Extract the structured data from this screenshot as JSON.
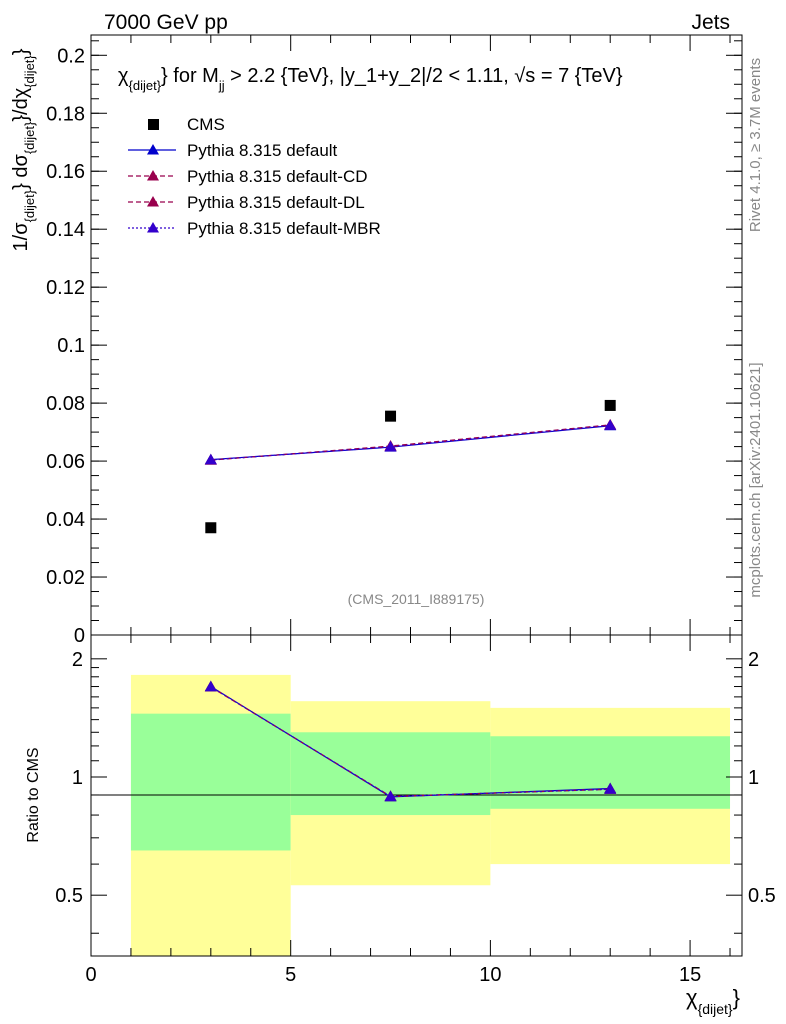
{
  "header": {
    "left": "7000 GeV pp",
    "right": "Jets"
  },
  "side_labels": {
    "rivet": "Rivet 4.1.0, ≥ 3.7M events",
    "mcplots": "mcplots.cern.ch [arXiv:2401.10621]"
  },
  "watermark": "(CMS_2011_I889175)",
  "colors": {
    "data": "#000000",
    "default": "#0000cc",
    "cd": "#99004d",
    "dl": "#99004d",
    "mbr": "#3300cc",
    "band_inner": "#99ff99",
    "band_outer": "#ffff99"
  },
  "chart_data": [
    {
      "type": "scatter",
      "title": "χ_{dijet} for M_jj > 2.2 {TeV}, |y_1+y_2|/2 < 1.11, √s = 7 {TeV}",
      "title_parts": {
        "chi": "χ",
        "chi_sub": "{dijet}",
        "mid": "} for M",
        "m_sub": "jj",
        "tail": " > 2.2 {TeV}, |y_1+y_2|/2 < 1.11, √s = 7 {TeV}"
      },
      "ylabel": "1/σ_{dijet} dσ_{dijet}/dχ_{dijet}",
      "ylabel_parts": {
        "p1": "1/σ",
        "s1": "{dijet}",
        "p2": "} dσ",
        "s2": "{dijet}",
        "p3": "}/dχ",
        "s3": "{dijet}",
        "p4": "}"
      },
      "xlim": [
        0,
        16.3
      ],
      "ylim": [
        0,
        0.207
      ],
      "yticks": [
        0,
        0.02,
        0.04,
        0.06,
        0.08,
        0.1,
        0.12,
        0.14,
        0.16,
        0.18,
        0.2
      ],
      "ytick_labels": [
        "0",
        "0.02",
        "0.04",
        "0.06",
        "0.08",
        "0.1",
        "0.12",
        "0.14",
        "0.16",
        "0.18",
        "0.2"
      ],
      "legend": [
        {
          "label": "CMS",
          "key": "data"
        },
        {
          "label": "Pythia 8.315 default",
          "key": "default"
        },
        {
          "label": "Pythia 8.315 default-CD",
          "key": "cd"
        },
        {
          "label": "Pythia 8.315 default-DL",
          "key": "dl"
        },
        {
          "label": "Pythia 8.315 default-MBR",
          "key": "mbr"
        }
      ],
      "legend_position": "top-left",
      "series": [
        {
          "name": "CMS",
          "key": "data",
          "x": [
            3,
            7.5,
            13
          ],
          "y": [
            0.037,
            0.0755,
            0.0792
          ]
        },
        {
          "name": "Pythia 8.315 default",
          "key": "default",
          "x": [
            3,
            7.5,
            13
          ],
          "y": [
            0.0605,
            0.0648,
            0.0722
          ]
        },
        {
          "name": "Pythia 8.315 default-CD",
          "key": "cd",
          "x": [
            3,
            7.5,
            13
          ],
          "y": [
            0.0603,
            0.0652,
            0.0725
          ]
        },
        {
          "name": "Pythia 8.315 default-DL",
          "key": "dl",
          "x": [
            3,
            7.5,
            13
          ],
          "y": [
            0.0604,
            0.065,
            0.0724
          ]
        },
        {
          "name": "Pythia 8.315 default-MBR",
          "key": "mbr",
          "x": [
            3,
            7.5,
            13
          ],
          "y": [
            0.0604,
            0.0649,
            0.0723
          ]
        }
      ]
    },
    {
      "type": "line",
      "ylabel": "Ratio to CMS",
      "xlabel": "χ_{dijet}",
      "xlabel_parts": {
        "chi": "χ",
        "sub": "{dijet}"
      },
      "xlim": [
        0,
        16.3
      ],
      "ylim": [
        0.35,
        2.3
      ],
      "xticks": [
        0,
        5,
        10,
        15
      ],
      "xtick_labels": [
        "0",
        "5",
        "10",
        "15"
      ],
      "yticks": [
        0.5,
        1,
        2
      ],
      "ytick_labels": [
        "0.5",
        "1",
        "2"
      ],
      "bands": [
        {
          "x_low": 1,
          "x_high": 5,
          "inner": [
            0.65,
            1.45
          ],
          "outer": [
            0.35,
            1.82
          ]
        },
        {
          "x_low": 5,
          "x_high": 10,
          "inner": [
            0.8,
            1.3
          ],
          "outer": [
            0.53,
            1.56
          ]
        },
        {
          "x_low": 10,
          "x_high": 16,
          "inner": [
            0.83,
            1.27
          ],
          "outer": [
            0.6,
            1.5
          ]
        }
      ],
      "series": [
        {
          "name": "Pythia 8.315 default",
          "key": "default",
          "x": [
            3,
            7.5,
            13
          ],
          "y": [
            1.7,
            0.89,
            0.935
          ]
        },
        {
          "name": "Pythia 8.315 default-CD",
          "key": "cd",
          "x": [
            3,
            7.5,
            13
          ],
          "y": [
            1.695,
            0.893,
            0.93
          ]
        },
        {
          "name": "Pythia 8.315 default-DL",
          "key": "dl",
          "x": [
            3,
            7.5,
            13
          ],
          "y": [
            1.698,
            0.891,
            0.932
          ]
        },
        {
          "name": "Pythia 8.315 default-MBR",
          "key": "mbr",
          "x": [
            3,
            7.5,
            13
          ],
          "y": [
            1.697,
            0.892,
            0.931
          ]
        }
      ]
    }
  ]
}
